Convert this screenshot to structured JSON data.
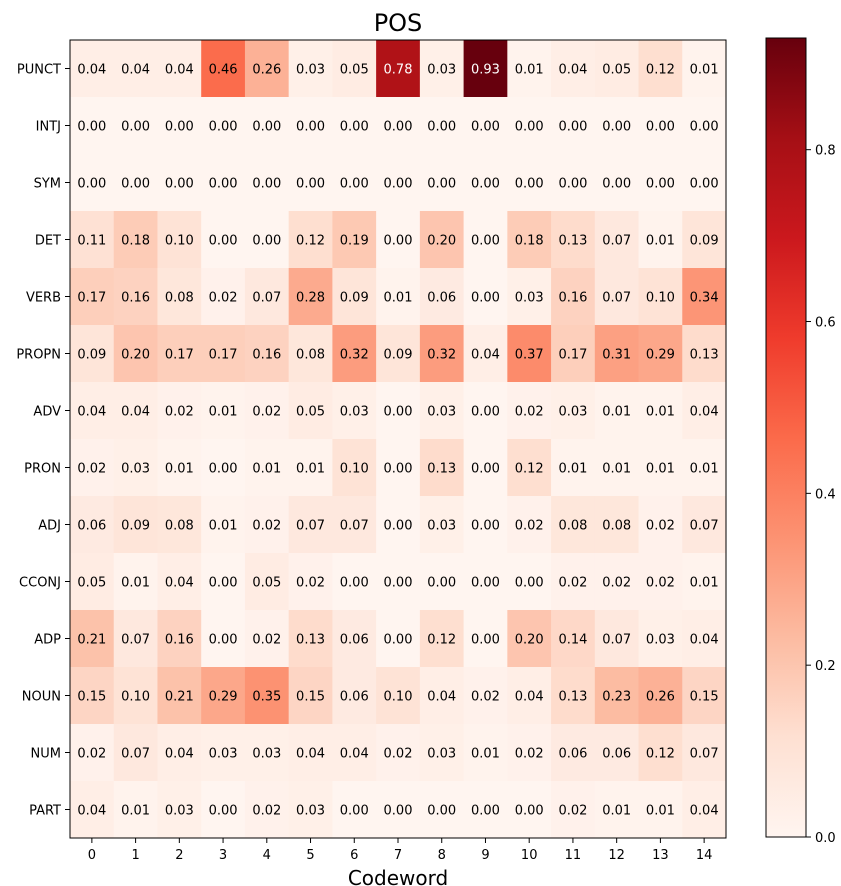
{
  "chart_data": {
    "type": "heatmap",
    "title": "POS",
    "xlabel": "Codeword",
    "ylabel": "",
    "colormap": "Reds",
    "x": [
      "0",
      "1",
      "2",
      "3",
      "4",
      "5",
      "6",
      "7",
      "8",
      "9",
      "10",
      "11",
      "12",
      "13",
      "14"
    ],
    "y": [
      "PUNCT",
      "INTJ",
      "SYM",
      "DET",
      "VERB",
      "PROPN",
      "ADV",
      "PRON",
      "ADJ",
      "CCONJ",
      "ADP",
      "NOUN",
      "NUM",
      "PART"
    ],
    "values": [
      [
        0.04,
        0.04,
        0.04,
        0.46,
        0.26,
        0.03,
        0.05,
        0.78,
        0.03,
        0.93,
        0.01,
        0.04,
        0.05,
        0.12,
        0.01
      ],
      [
        0.0,
        0.0,
        0.0,
        0.0,
        0.0,
        0.0,
        0.0,
        0.0,
        0.0,
        0.0,
        0.0,
        0.0,
        0.0,
        0.0,
        0.0
      ],
      [
        0.0,
        0.0,
        0.0,
        0.0,
        0.0,
        0.0,
        0.0,
        0.0,
        0.0,
        0.0,
        0.0,
        0.0,
        0.0,
        0.0,
        0.0
      ],
      [
        0.11,
        0.18,
        0.1,
        0.0,
        0.0,
        0.12,
        0.19,
        0.0,
        0.2,
        0.0,
        0.18,
        0.13,
        0.07,
        0.01,
        0.09
      ],
      [
        0.17,
        0.16,
        0.08,
        0.02,
        0.07,
        0.28,
        0.09,
        0.01,
        0.06,
        0.0,
        0.03,
        0.16,
        0.07,
        0.1,
        0.34
      ],
      [
        0.09,
        0.2,
        0.17,
        0.17,
        0.16,
        0.08,
        0.32,
        0.09,
        0.32,
        0.04,
        0.37,
        0.17,
        0.31,
        0.29,
        0.13
      ],
      [
        0.04,
        0.04,
        0.02,
        0.01,
        0.02,
        0.05,
        0.03,
        0.0,
        0.03,
        0.0,
        0.02,
        0.03,
        0.01,
        0.01,
        0.04
      ],
      [
        0.02,
        0.03,
        0.01,
        0.0,
        0.01,
        0.01,
        0.1,
        0.0,
        0.13,
        0.0,
        0.12,
        0.01,
        0.01,
        0.01,
        0.01
      ],
      [
        0.06,
        0.09,
        0.08,
        0.01,
        0.02,
        0.07,
        0.07,
        0.0,
        0.03,
        0.0,
        0.02,
        0.08,
        0.08,
        0.02,
        0.07
      ],
      [
        0.05,
        0.01,
        0.04,
        0.0,
        0.05,
        0.02,
        0.0,
        0.0,
        0.0,
        0.0,
        0.0,
        0.02,
        0.02,
        0.02,
        0.01
      ],
      [
        0.21,
        0.07,
        0.16,
        0.0,
        0.02,
        0.13,
        0.06,
        0.0,
        0.12,
        0.0,
        0.2,
        0.14,
        0.07,
        0.03,
        0.04
      ],
      [
        0.15,
        0.1,
        0.21,
        0.29,
        0.35,
        0.15,
        0.06,
        0.1,
        0.04,
        0.02,
        0.04,
        0.13,
        0.23,
        0.26,
        0.15
      ],
      [
        0.02,
        0.07,
        0.04,
        0.03,
        0.03,
        0.04,
        0.04,
        0.02,
        0.03,
        0.01,
        0.02,
        0.06,
        0.06,
        0.12,
        0.07
      ],
      [
        0.04,
        0.01,
        0.03,
        0.0,
        0.02,
        0.03,
        0.0,
        0.0,
        0.0,
        0.0,
        0.0,
        0.02,
        0.01,
        0.01,
        0.04
      ]
    ],
    "vmin": 0.0,
    "vmax": 0.93,
    "colorbar_ticks": [
      "0.0",
      "0.2",
      "0.4",
      "0.6",
      "0.8"
    ],
    "colorbar_tick_values": [
      0.0,
      0.2,
      0.4,
      0.6,
      0.8
    ]
  }
}
